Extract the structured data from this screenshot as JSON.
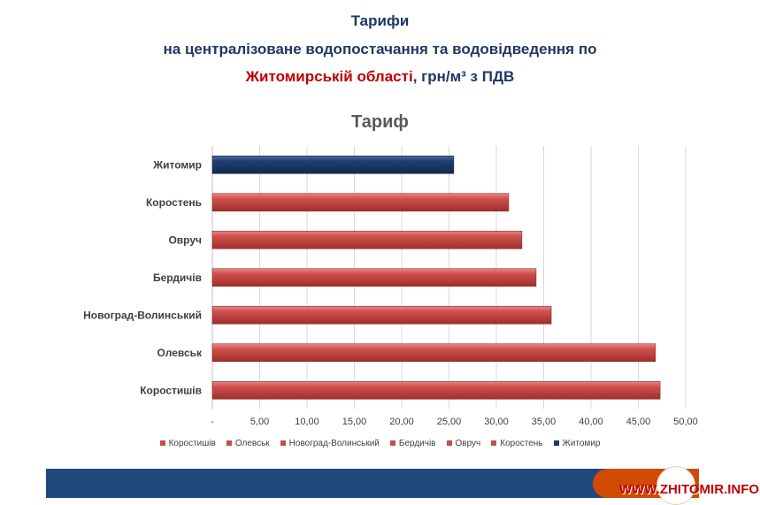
{
  "header": {
    "line1": "Тарифи",
    "line2": "на централізоване водопостачання та водовідведення по",
    "line3_highlight": "Житомирській області",
    "line3_rest": ", грн/м³ з ПДВ"
  },
  "chart_data": {
    "type": "bar",
    "orientation": "horizontal",
    "title": "Тариф",
    "categories": [
      "Житомир",
      "Коростень",
      "Овруч",
      "Бердичів",
      "Новоград-Волинський",
      "Олевськ",
      "Коростишів"
    ],
    "values": [
      25.5,
      31.3,
      32.7,
      34.2,
      35.8,
      46.8,
      47.3
    ],
    "colors": [
      "#1f3864",
      "#c0504d",
      "#c0504d",
      "#c0504d",
      "#c0504d",
      "#c0504d",
      "#c0504d"
    ],
    "xlim": [
      0,
      50
    ],
    "xticks": [
      "-",
      "5,00",
      "10,00",
      "15,00",
      "20,00",
      "25,00",
      "30,00",
      "35,00",
      "40,00",
      "45,00",
      "50,00"
    ],
    "grid": true,
    "legend_position": "bottom",
    "legend": [
      "Коростишів",
      "Олевськ",
      "Новоград-Волинський",
      "Бердичів",
      "Овруч",
      "Коростень",
      "Житомир"
    ]
  },
  "footer": {
    "site": "WWW.ZHITOMIR.INFO"
  }
}
